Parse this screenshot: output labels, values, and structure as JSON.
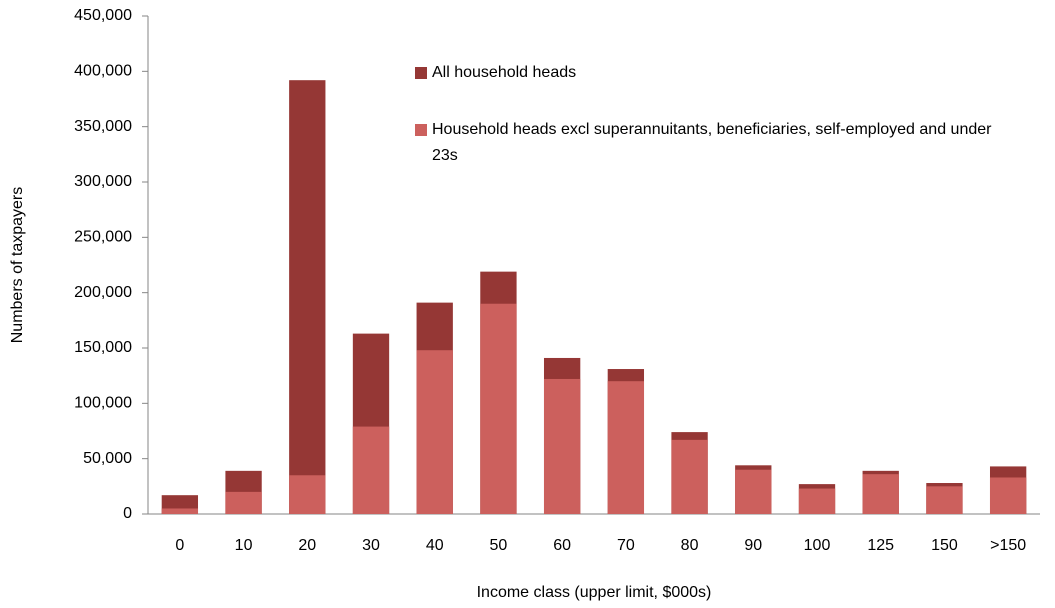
{
  "chart_data": {
    "type": "bar",
    "x_label": "Income class (upper limit, $000s)",
    "y_label": "Numbers  of  taxpayers",
    "categories": [
      "0",
      "10",
      "20",
      "30",
      "40",
      "50",
      "60",
      "70",
      "80",
      "90",
      "100",
      "125",
      "150",
      ">150"
    ],
    "series": [
      {
        "name": "All household heads",
        "color": "#953735",
        "values": [
          17000,
          39000,
          392000,
          163000,
          191000,
          219000,
          141000,
          131000,
          74000,
          44000,
          27000,
          39000,
          28000,
          43000
        ]
      },
      {
        "name": "Household heads excl superannuitants,  beneficiaries, self-employed and under 23s",
        "color": "#cc605d",
        "values": [
          5000,
          20000,
          35000,
          79000,
          148000,
          190000,
          122000,
          120000,
          67000,
          40000,
          23000,
          36000,
          25000,
          33000
        ]
      }
    ],
    "ylim": [
      0,
      450000
    ],
    "yticks": [
      0,
      {
        "value": 50000,
        "label": "50,000"
      },
      {
        "value": 100000,
        "label": "100,000"
      },
      {
        "value": 150000,
        "label": "150,000"
      },
      {
        "value": 200000,
        "label": "200,000"
      },
      {
        "value": 250000,
        "label": "250,000"
      },
      {
        "value": 300000,
        "label": "300,000"
      },
      {
        "value": 350000,
        "label": "350,000"
      },
      {
        "value": 400000,
        "label": "400,000"
      },
      {
        "value": 450000,
        "label": "450,000"
      }
    ],
    "legend_position": "top-center"
  }
}
